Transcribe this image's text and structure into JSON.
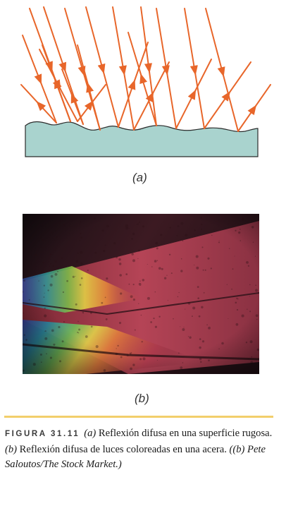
{
  "colors": {
    "ray": "#e8662a",
    "surface_fill": "#a9d3ce",
    "surface_stroke": "#2b2b2b",
    "caption_rule": "#f2cf6b",
    "figure_number": "#3a3a3a"
  },
  "panel_a": {
    "label": "(a)"
  },
  "panel_b": {
    "label": "(b)",
    "image_description": "photograph"
  },
  "caption": {
    "figure_number": "FIGURA 31.11",
    "part_a_letter": "(a)",
    "part_a_text": " Reflexión difusa en una superficie rugosa. ",
    "part_b_letter": "(b)",
    "part_b_text": " Reflexión difusa de luces coloreadas en una acera. ",
    "credit_open": "((b) ",
    "credit_text": "Pete Saloutos/The Stock Market.)"
  }
}
